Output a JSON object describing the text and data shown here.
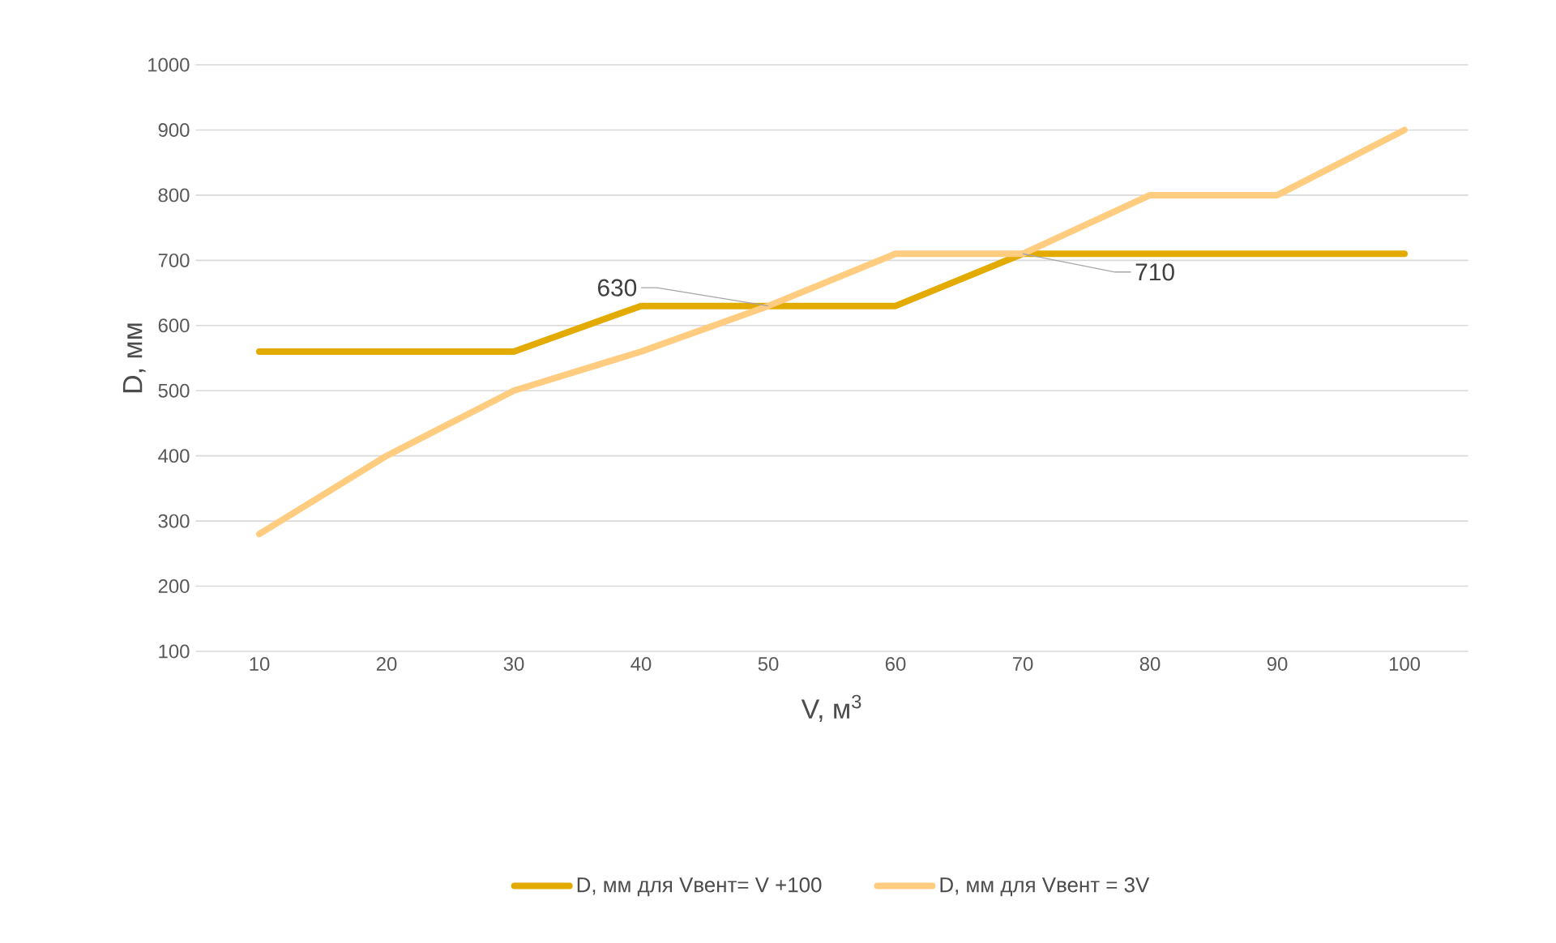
{
  "chart_data": {
    "type": "line",
    "xlabel": "V, м$^{3}$",
    "ylabel": "D, мм",
    "categories": [
      "10",
      "20",
      "30",
      "40",
      "50",
      "60",
      "70",
      "80",
      "90",
      "100"
    ],
    "series": [
      {
        "name": "D, мм для Vвент= V +100",
        "color": "#e3aa00",
        "values": [
          560,
          560,
          560,
          630,
          630,
          630,
          710,
          710,
          710,
          710
        ]
      },
      {
        "name": "D, мм для Vвент = 3V",
        "color": "#ffcc80",
        "values": [
          280,
          400,
          500,
          560,
          630,
          710,
          710,
          800,
          800,
          900
        ]
      }
    ],
    "ylim": [
      100,
      1000
    ],
    "yticks": [
      100,
      200,
      300,
      400,
      500,
      600,
      700,
      800,
      900,
      1000
    ],
    "grid": "y",
    "legend": "bottom",
    "marker": "none",
    "line_style": "solid",
    "annotations": [
      {
        "text": "630",
        "x": "50",
        "y": 630
      },
      {
        "text": "710",
        "x": "70",
        "y": 710
      }
    ]
  }
}
